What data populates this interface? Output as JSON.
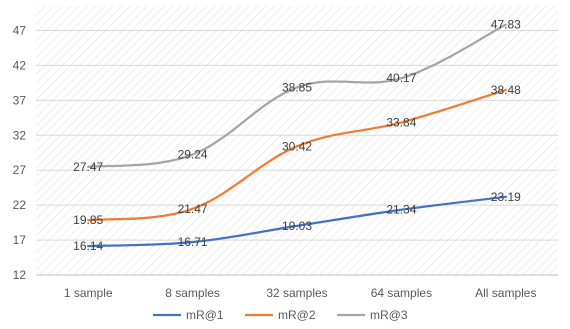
{
  "chart_data": {
    "type": "line",
    "categories": [
      "1 sample",
      "8 samples",
      "32 samples",
      "64 samples",
      "All samples"
    ],
    "series": [
      {
        "name": "mR@1",
        "color": "#4472C4",
        "values": [
          16.14,
          16.71,
          19.03,
          21.34,
          23.19
        ]
      },
      {
        "name": "mR@2",
        "color": "#ED7D31",
        "values": [
          19.85,
          21.47,
          30.42,
          33.84,
          38.48
        ]
      },
      {
        "name": "mR@3",
        "color": "#A5A5A5",
        "values": [
          27.47,
          29.24,
          38.85,
          40.17,
          47.83
        ]
      }
    ],
    "yticks": [
      12,
      17,
      22,
      27,
      32,
      37,
      42,
      47
    ],
    "ylim": [
      12,
      50.5
    ],
    "grid": true,
    "background_pattern": "diagonal-hatch",
    "legend_position": "bottom",
    "data_labels": true
  }
}
